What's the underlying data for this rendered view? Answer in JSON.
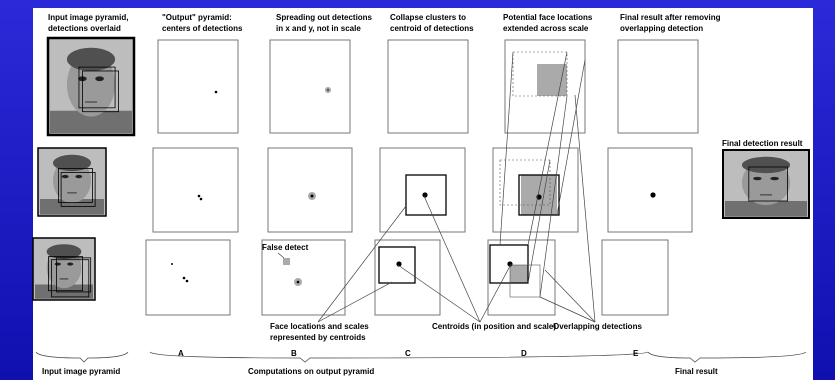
{
  "headers": [
    [
      "Input image pyramid,",
      "detections overlaid"
    ],
    [
      "\"Output\" pyramid:",
      "centers of detections"
    ],
    [
      "Spreading out detections",
      "in x and y, not in scale"
    ],
    [
      "Collapse clusters to",
      "centroid of detections"
    ],
    [
      "Potential face locations",
      "extended across scale"
    ],
    [
      "Final result after removing",
      "overlapping detection"
    ]
  ],
  "final_label": "Final detection result",
  "false_detect": "False detect",
  "annotations": {
    "face_locations": [
      "Face locations and scales",
      "represented by centroids"
    ],
    "centroids": "Centroids (in position and scale)",
    "overlapping": "Overlapping detections"
  },
  "steps": [
    "A",
    "B",
    "C",
    "D",
    "E"
  ],
  "groups": [
    "Input image pyramid",
    "Computations on output pyramid",
    "Final result"
  ]
}
